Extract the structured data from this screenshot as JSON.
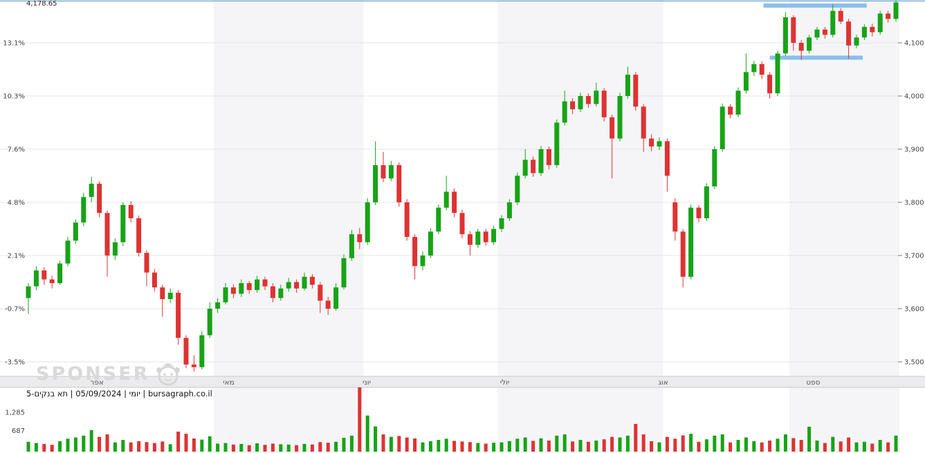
{
  "meta": {
    "current_price": "4,178.65",
    "info_line": "יומי | 05/09/2024 | תא בנקים-5 | bursagraph.co.il",
    "watermark": "SPONSER"
  },
  "colors": {
    "up": "#17a317",
    "down": "#dd3333",
    "annotation_blue": "#7db9e8",
    "current_price_line": "#5a9bd5",
    "gridline": "#e4e4e6",
    "stripe_gray": "#f5f5f7",
    "stripe_white": "#ffffff",
    "axis_band_bg": "#ebebed",
    "axis_band_border": "#c9c9cb",
    "axis_text": "#444444",
    "month_text": "#555555"
  },
  "chart_data": {
    "type": "candlestick",
    "instrument": "תא בנקים-5",
    "timeframe": "יומי",
    "date": "05/09/2024",
    "source": "bursagraph.co.il",
    "last": 4178.65,
    "pct_base_value": 3625.4,
    "axes": {
      "right": {
        "labels": [
          "4,100",
          "4,000",
          "3,900",
          "3,800",
          "3,700",
          "3,600",
          "3,500"
        ],
        "prices": [
          4100,
          4000,
          3900,
          3800,
          3700,
          3600,
          3500
        ]
      },
      "left": {
        "labels": [
          "13.1%",
          "10.3%",
          "7.6%",
          "4.8%",
          "2.1%",
          "-0.7%",
          "-3.5%"
        ]
      },
      "volume": {
        "labels": [
          "1,285",
          "687"
        ],
        "values": [
          1285,
          687
        ]
      }
    },
    "months": [
      {
        "label": "אפר",
        "start": 0,
        "label_index": 8.7
      },
      {
        "label": "מאי",
        "start": 24,
        "label_index": 25.4
      },
      {
        "label": "יוני",
        "start": 43,
        "label_index": 42.9
      },
      {
        "label": "יולי",
        "start": 60,
        "label_index": 60.4
      },
      {
        "label": "אוג",
        "start": 81,
        "label_index": 80.5
      },
      {
        "label": "ספט",
        "start": 97,
        "label_index": 99.5
      }
    ],
    "annotations": {
      "resistance": {
        "price": 4170,
        "from_index": 93.2,
        "to_index": 106.3
      },
      "support": {
        "price": 4072,
        "from_index": 94.0,
        "to_index": 105.8
      }
    },
    "candles": [
      [
        3620,
        3648,
        3590,
        3642,
        320
      ],
      [
        3642,
        3680,
        3635,
        3672,
        280
      ],
      [
        3672,
        3678,
        3645,
        3655,
        250
      ],
      [
        3655,
        3662,
        3638,
        3648,
        220
      ],
      [
        3648,
        3690,
        3645,
        3685,
        340
      ],
      [
        3685,
        3735,
        3680,
        3728,
        420
      ],
      [
        3728,
        3768,
        3722,
        3762,
        460
      ],
      [
        3762,
        3818,
        3755,
        3810,
        520
      ],
      [
        3810,
        3848,
        3800,
        3835,
        700
      ],
      [
        3835,
        3840,
        3772,
        3780,
        480
      ],
      [
        3780,
        3785,
        3660,
        3700,
        560
      ],
      [
        3700,
        3732,
        3692,
        3725,
        300
      ],
      [
        3725,
        3800,
        3718,
        3795,
        380
      ],
      [
        3795,
        3802,
        3762,
        3770,
        300
      ],
      [
        3770,
        3775,
        3698,
        3705,
        340
      ],
      [
        3705,
        3710,
        3642,
        3668,
        310
      ],
      [
        3668,
        3675,
        3632,
        3640,
        280
      ],
      [
        3640,
        3645,
        3585,
        3618,
        330
      ],
      [
        3618,
        3638,
        3610,
        3630,
        240
      ],
      [
        3630,
        3635,
        3532,
        3545,
        650
      ],
      [
        3545,
        3550,
        3488,
        3495,
        580
      ],
      [
        3495,
        3512,
        3482,
        3490,
        430
      ],
      [
        3490,
        3558,
        3486,
        3550,
        390
      ],
      [
        3550,
        3612,
        3545,
        3600,
        500
      ],
      [
        3600,
        3620,
        3592,
        3612,
        260
      ],
      [
        3612,
        3648,
        3608,
        3640,
        280
      ],
      [
        3640,
        3646,
        3620,
        3628,
        230
      ],
      [
        3628,
        3655,
        3622,
        3648,
        250
      ],
      [
        3648,
        3652,
        3628,
        3635,
        210
      ],
      [
        3635,
        3662,
        3630,
        3655,
        270
      ],
      [
        3655,
        3660,
        3635,
        3642,
        220
      ],
      [
        3642,
        3648,
        3612,
        3620,
        260
      ],
      [
        3620,
        3645,
        3615,
        3638,
        240
      ],
      [
        3638,
        3658,
        3632,
        3650,
        230
      ],
      [
        3650,
        3655,
        3630,
        3638,
        210
      ],
      [
        3638,
        3668,
        3634,
        3660,
        250
      ],
      [
        3660,
        3665,
        3638,
        3645,
        230
      ],
      [
        3645,
        3650,
        3592,
        3615,
        310
      ],
      [
        3615,
        3622,
        3588,
        3600,
        290
      ],
      [
        3600,
        3648,
        3596,
        3640,
        320
      ],
      [
        3640,
        3702,
        3636,
        3695,
        450
      ],
      [
        3695,
        3748,
        3690,
        3740,
        520
      ],
      [
        3740,
        3752,
        3712,
        3725,
        2135
      ],
      [
        3725,
        3808,
        3720,
        3800,
        1175
      ],
      [
        3800,
        3915,
        3795,
        3870,
        820
      ],
      [
        3870,
        3895,
        3838,
        3845,
        560
      ],
      [
        3845,
        3878,
        3840,
        3870,
        480
      ],
      [
        3870,
        3875,
        3792,
        3800,
        510
      ],
      [
        3800,
        3806,
        3728,
        3735,
        460
      ],
      [
        3735,
        3740,
        3655,
        3680,
        430
      ],
      [
        3680,
        3708,
        3672,
        3700,
        300
      ],
      [
        3700,
        3752,
        3695,
        3745,
        340
      ],
      [
        3745,
        3796,
        3740,
        3790,
        380
      ],
      [
        3790,
        3850,
        3785,
        3820,
        420
      ],
      [
        3820,
        3826,
        3772,
        3780,
        350
      ],
      [
        3780,
        3786,
        3732,
        3740,
        330
      ],
      [
        3740,
        3746,
        3700,
        3720,
        310
      ],
      [
        3720,
        3750,
        3714,
        3745,
        280
      ],
      [
        3745,
        3750,
        3718,
        3725,
        260
      ],
      [
        3725,
        3756,
        3720,
        3750,
        290
      ],
      [
        3750,
        3776,
        3744,
        3770,
        300
      ],
      [
        3770,
        3806,
        3765,
        3800,
        340
      ],
      [
        3800,
        3856,
        3795,
        3850,
        420
      ],
      [
        3850,
        3900,
        3845,
        3880,
        460
      ],
      [
        3880,
        3886,
        3848,
        3855,
        350
      ],
      [
        3855,
        3906,
        3850,
        3900,
        430
      ],
      [
        3900,
        3905,
        3862,
        3870,
        360
      ],
      [
        3870,
        3956,
        3865,
        3950,
        520
      ],
      [
        3950,
        4010,
        3945,
        3990,
        560
      ],
      [
        3990,
        3996,
        3966,
        3975,
        330
      ],
      [
        3975,
        4006,
        3970,
        4000,
        380
      ],
      [
        4000,
        4005,
        3978,
        3985,
        320
      ],
      [
        3985,
        4025,
        3980,
        4010,
        360
      ],
      [
        4010,
        4015,
        3952,
        3960,
        400
      ],
      [
        3960,
        3965,
        3845,
        3920,
        480
      ],
      [
        3920,
        4006,
        3915,
        4000,
        460
      ],
      [
        4000,
        4055,
        3995,
        4040,
        520
      ],
      [
        4040,
        4045,
        3972,
        3980,
        900
      ],
      [
        3980,
        3985,
        3895,
        3920,
        560
      ],
      [
        3920,
        3928,
        3896,
        3905,
        340
      ],
      [
        3905,
        3922,
        3898,
        3915,
        300
      ],
      [
        3915,
        3920,
        3820,
        3850,
        480
      ],
      [
        3800,
        3808,
        3728,
        3745,
        420
      ],
      [
        3745,
        3750,
        3640,
        3660,
        530
      ],
      [
        3660,
        3796,
        3655,
        3790,
        580
      ],
      [
        3790,
        3795,
        3762,
        3770,
        320
      ],
      [
        3770,
        3836,
        3765,
        3830,
        400
      ],
      [
        3830,
        3906,
        3825,
        3900,
        520
      ],
      [
        3900,
        3986,
        3895,
        3980,
        560
      ],
      [
        3980,
        3985,
        3958,
        3965,
        300
      ],
      [
        3965,
        4016,
        3960,
        4010,
        380
      ],
      [
        4010,
        4080,
        4005,
        4045,
        460
      ],
      [
        4045,
        4066,
        4038,
        4060,
        340
      ],
      [
        4060,
        4065,
        4032,
        4040,
        300
      ],
      [
        4040,
        4045,
        3995,
        4005,
        360
      ],
      [
        4005,
        4085,
        4000,
        4080,
        420
      ],
      [
        4080,
        4158,
        4075,
        4148,
        560
      ],
      [
        4148,
        4152,
        4085,
        4100,
        440
      ],
      [
        4100,
        4105,
        4068,
        4085,
        380
      ],
      [
        4085,
        4115,
        4080,
        4110,
        810
      ],
      [
        4110,
        4130,
        4105,
        4125,
        360
      ],
      [
        4125,
        4130,
        4108,
        4115,
        280
      ],
      [
        4115,
        4172,
        4110,
        4160,
        480
      ],
      [
        4160,
        4165,
        4135,
        4140,
        330
      ],
      [
        4140,
        4145,
        4070,
        4095,
        460
      ],
      [
        4095,
        4115,
        4090,
        4110,
        300
      ],
      [
        4110,
        4135,
        4105,
        4130,
        320
      ],
      [
        4130,
        4136,
        4112,
        4120,
        260
      ],
      [
        4120,
        4160,
        4115,
        4155,
        380
      ],
      [
        4155,
        4160,
        4138,
        4145,
        300
      ],
      [
        4145,
        4180,
        4140,
        4176,
        520
      ]
    ]
  }
}
